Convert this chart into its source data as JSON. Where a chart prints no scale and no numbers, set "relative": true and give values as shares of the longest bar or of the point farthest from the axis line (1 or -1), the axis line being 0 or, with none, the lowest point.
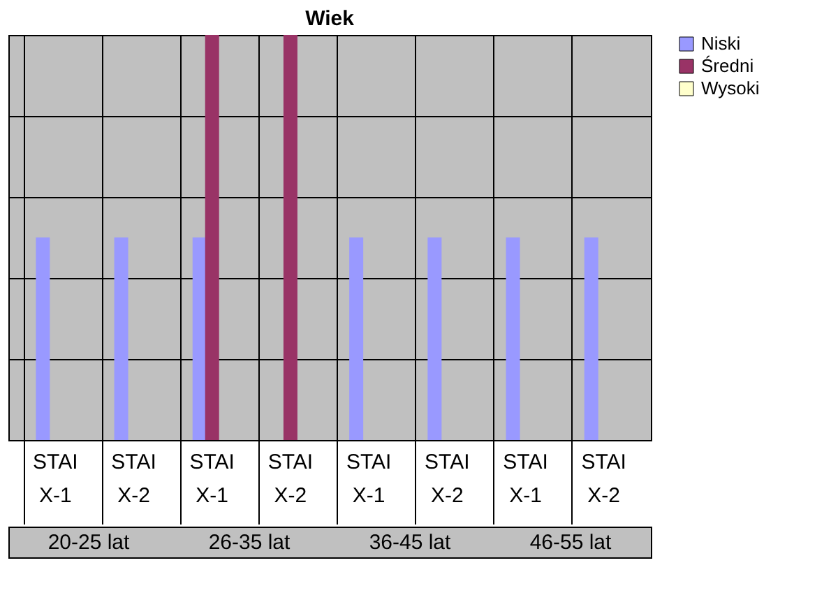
{
  "chart_data": {
    "type": "bar",
    "title": "Wiek",
    "relative": true,
    "grid": "y",
    "legend": "right",
    "categories": [
      "STAI X-1",
      "STAI X-2",
      "STAI X-1",
      "STAI X-2",
      "STAI X-1",
      "STAI X-2",
      "STAI X-1",
      "STAI X-2"
    ],
    "series": [
      {
        "name": "Niski",
        "color": "#9999ff",
        "values": [
          0.5,
          0.5,
          0.5,
          0,
          0.5,
          0.5,
          0.5,
          0.5
        ]
      },
      {
        "name": "Średni",
        "color": "#993366",
        "values": [
          0,
          0,
          1,
          1,
          0,
          0,
          0,
          0
        ]
      },
      {
        "name": "Wysoki",
        "color": "#ffffcc",
        "values": [
          0,
          0,
          0,
          0,
          0,
          0,
          0,
          0
        ]
      }
    ],
    "annotations": [
      "20-25 lat",
      "26-35 lat",
      "36-45 lat",
      "46-55 lat"
    ]
  }
}
